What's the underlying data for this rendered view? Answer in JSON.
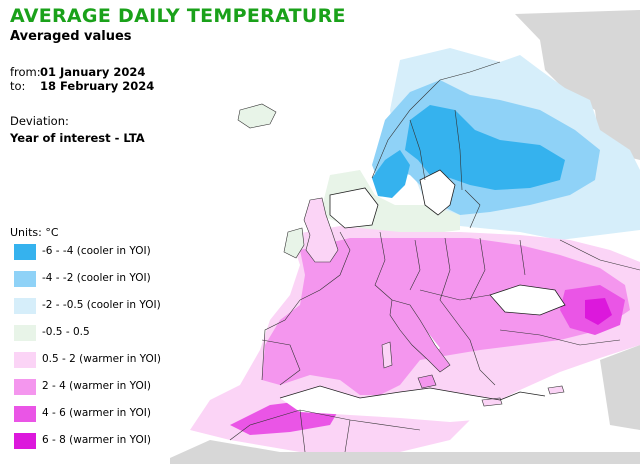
{
  "title": "AVERAGE DAILY TEMPERATURE",
  "subtitle": "Averaged values",
  "period": {
    "from_label": "from:",
    "from_value": "01 January 2024",
    "to_label": "to:",
    "to_value": "18 February 2024"
  },
  "deviation": {
    "label": "Deviation:",
    "value": "Year of interest - LTA"
  },
  "legend": {
    "units": "Units: °C",
    "items": [
      {
        "label": "-6 - -4 (cooler in YOI)",
        "color": "#35b2ee"
      },
      {
        "label": "-4 - -2 (cooler in YOI)",
        "color": "#8fd2f7"
      },
      {
        "label": "-2 - -0.5 (cooler in YOI)",
        "color": "#d6eefa"
      },
      {
        "label": "-0.5 - 0.5",
        "color": "#e8f4e8"
      },
      {
        "label": "0.5 - 2 (warmer in YOI)",
        "color": "#fbd4f6"
      },
      {
        "label": "2 - 4 (warmer in YOI)",
        "color": "#f496ee"
      },
      {
        "label": "4 - 6 (warmer in YOI)",
        "color": "#ea55e6"
      },
      {
        "label": "6 - 8 (warmer in YOI)",
        "color": "#dc18dc"
      }
    ]
  },
  "map_colors": {
    "no_data": "#d7d7d7",
    "sea": "#ffffff",
    "border": "#333333"
  }
}
